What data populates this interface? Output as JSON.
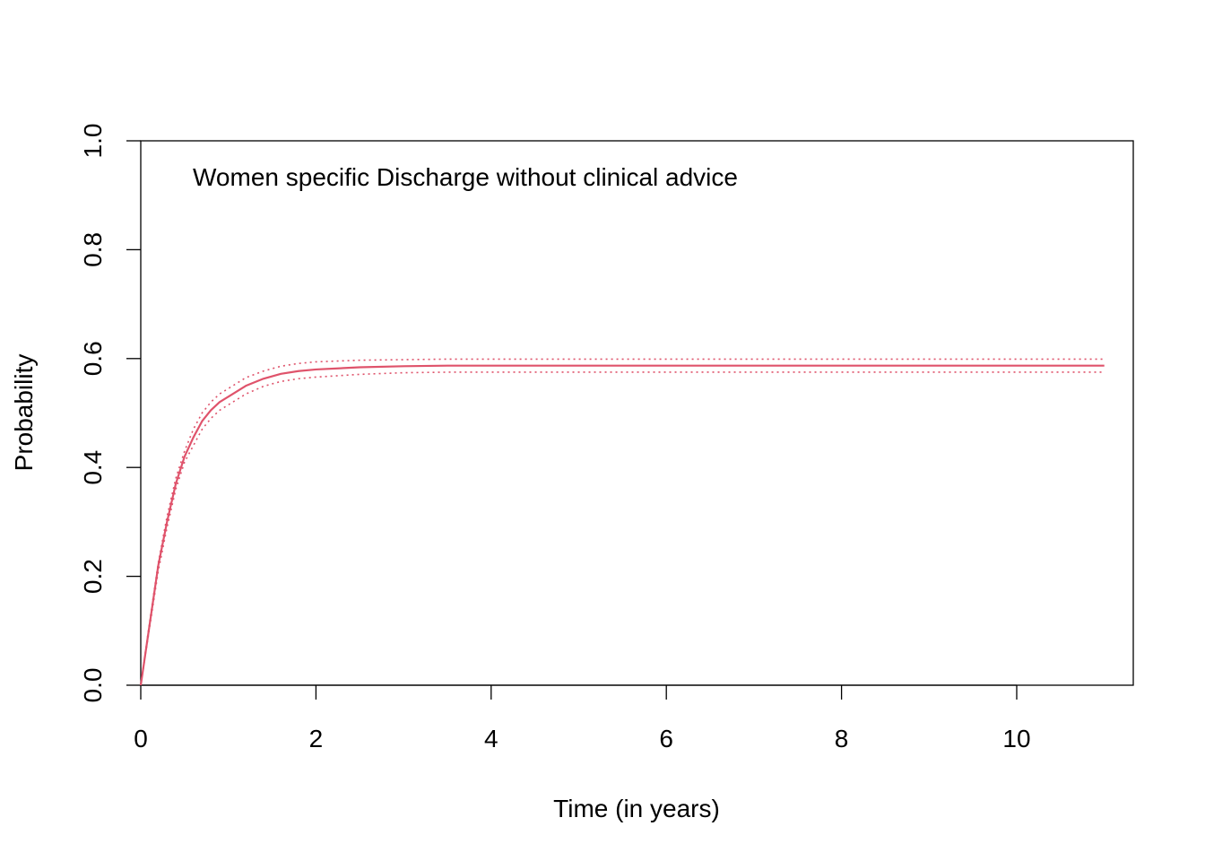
{
  "chart_data": {
    "type": "line",
    "title": "",
    "annotation": "Women specific Discharge without clinical advice",
    "xlabel": "Time (in years)",
    "ylabel": "Probability",
    "xlim": [
      0,
      11.3
    ],
    "ylim": [
      0,
      1.0
    ],
    "xticks": [
      0,
      2,
      4,
      6,
      8,
      10
    ],
    "xtick_labels": [
      "0",
      "2",
      "4",
      "6",
      "8",
      "10"
    ],
    "yticks": [
      0.0,
      0.2,
      0.4,
      0.6,
      0.8,
      1.0
    ],
    "ytick_labels": [
      "0.0",
      "0.2",
      "0.4",
      "0.6",
      "0.8",
      "1.0"
    ],
    "color": "#DF536B",
    "x": [
      0,
      0.1,
      0.2,
      0.3,
      0.4,
      0.5,
      0.6,
      0.7,
      0.8,
      0.9,
      1.0,
      1.2,
      1.4,
      1.6,
      1.8,
      2.0,
      2.5,
      3.0,
      3.5,
      4,
      5,
      6,
      7,
      8,
      9,
      10,
      11
    ],
    "series": [
      {
        "style": "solid",
        "values": [
          0,
          0.11,
          0.22,
          0.3,
          0.37,
          0.42,
          0.455,
          0.485,
          0.505,
          0.52,
          0.53,
          0.55,
          0.563,
          0.572,
          0.577,
          0.58,
          0.584,
          0.586,
          0.587,
          0.587,
          0.587,
          0.587,
          0.587,
          0.587,
          0.587,
          0.587,
          0.587
        ]
      },
      {
        "style": "dotted",
        "values": [
          0,
          0.115,
          0.225,
          0.31,
          0.38,
          0.43,
          0.47,
          0.5,
          0.52,
          0.535,
          0.545,
          0.565,
          0.577,
          0.586,
          0.591,
          0.594,
          0.597,
          0.598,
          0.599,
          0.599,
          0.599,
          0.599,
          0.599,
          0.599,
          0.599,
          0.599,
          0.599
        ]
      },
      {
        "style": "dotted",
        "values": [
          0,
          0.105,
          0.21,
          0.29,
          0.36,
          0.41,
          0.44,
          0.47,
          0.49,
          0.505,
          0.515,
          0.535,
          0.549,
          0.558,
          0.563,
          0.566,
          0.571,
          0.574,
          0.575,
          0.575,
          0.575,
          0.575,
          0.575,
          0.575,
          0.575,
          0.575,
          0.575
        ]
      }
    ]
  }
}
